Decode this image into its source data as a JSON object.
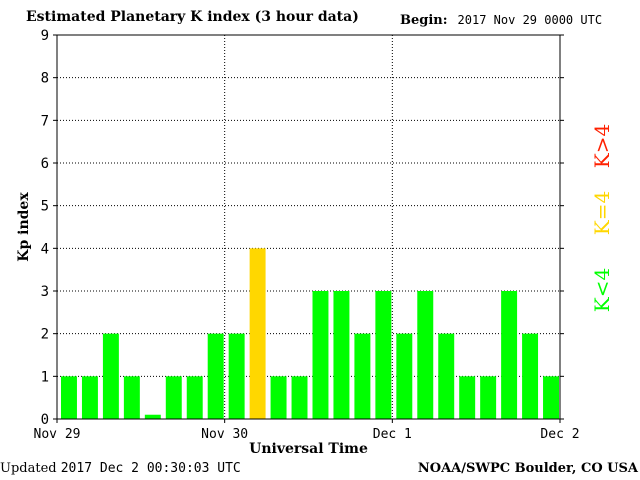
{
  "title": "Estimated Planetary K index (3 hour data)",
  "begin": {
    "label": "Begin:",
    "value": "2017 Nov 29 0000 UTC"
  },
  "footer": {
    "updated_label": "Updated",
    "updated_value": "2017 Dec  2 00:30:03 UTC",
    "source": "NOAA/SWPC Boulder, CO USA"
  },
  "chart_data": {
    "type": "bar",
    "ylabel": "Kp index",
    "xlabel": "Universal Time",
    "ylim": [
      0,
      9
    ],
    "yticks": [
      "0",
      "1",
      "2",
      "3",
      "4",
      "5",
      "6",
      "7",
      "8",
      "9"
    ],
    "xticks": [
      "Nov 29",
      "Nov 30",
      "Dec 1",
      "Dec 2"
    ],
    "grid": true,
    "bar_count": 24,
    "values": [
      1,
      1,
      2,
      1,
      0.1,
      1,
      1,
      2,
      2,
      4,
      1,
      1,
      3,
      3,
      2,
      3,
      2,
      3,
      2,
      1,
      1,
      3,
      2,
      1
    ],
    "colors": {
      "below4": "#00ff00",
      "equal4": "#ffd700",
      "above4": "#ff2000"
    },
    "legend": [
      {
        "label": "K<4",
        "color": "#00ff00"
      },
      {
        "label": "K=4",
        "color": "#ffd700"
      },
      {
        "label": "K>4",
        "color": "#ff2000"
      }
    ],
    "legend_placement": "right"
  }
}
